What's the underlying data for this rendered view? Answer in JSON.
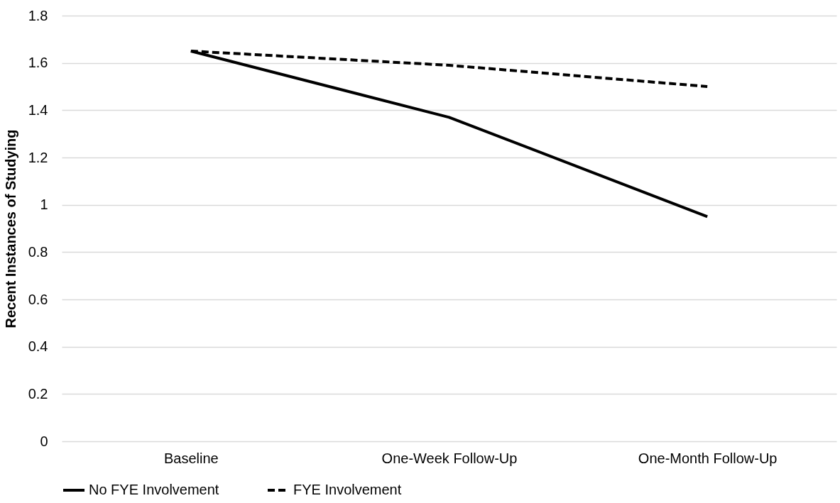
{
  "chart_data": {
    "type": "line",
    "categories": [
      "Baseline",
      "One-Week Follow-Up",
      "One-Month Follow-Up"
    ],
    "ylabel": "Recent Instances of Studying",
    "ylim": [
      0,
      1.8
    ],
    "yticks": [
      0,
      0.2,
      0.4,
      0.6,
      0.8,
      1,
      1.2,
      1.4,
      1.6,
      1.8
    ],
    "grid": "y",
    "legend": "bottom",
    "series": [
      {
        "name": "No FYE Involvement",
        "color": "#000000",
        "line_style": "solid",
        "values": [
          1.65,
          1.37,
          0.95
        ]
      },
      {
        "name": "FYE Involvement",
        "color": "#000000",
        "line_style": "dashed",
        "values": [
          1.65,
          1.59,
          1.5
        ]
      }
    ]
  }
}
